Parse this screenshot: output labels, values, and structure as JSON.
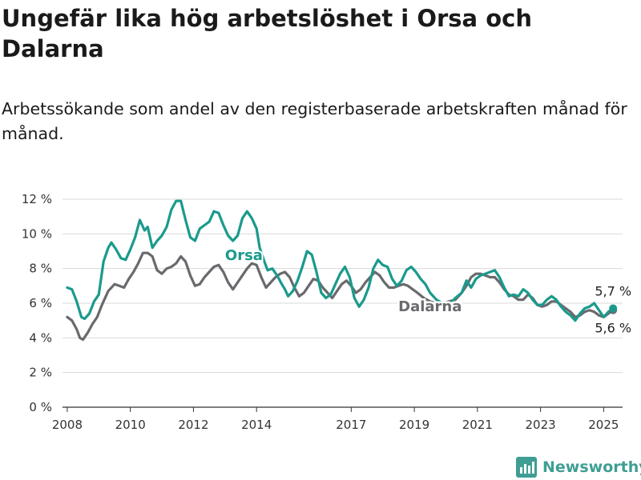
{
  "title": "Ungefär lika hög arbetslöshet i Orsa och Dalarna",
  "subtitle": "Arbetssökande som andel av den registerbaserade arbetskraften månad för månad.",
  "brand": {
    "name": "Newsworthy",
    "logo_icon": "newsworthy-bar-chart-logo"
  },
  "colors": {
    "orsa": "#1a9a8c",
    "dalarna": "#6a6a6e",
    "grid": "#d9d9d9",
    "axis": "#333333"
  },
  "chart_data": {
    "type": "line",
    "x_unit": "year",
    "xlim": [
      2007.85,
      2025.6
    ],
    "ylim": [
      0,
      12
    ],
    "y_ticks": [
      0,
      2,
      4,
      6,
      8,
      10,
      12
    ],
    "y_tick_labels": [
      "0 %",
      "2 %",
      "4 %",
      "6 %",
      "8 %",
      "10 %",
      "12 %"
    ],
    "x_ticks": [
      2008,
      2010,
      2012,
      2014,
      2017,
      2019,
      2021,
      2023,
      2025
    ],
    "x_tick_labels": [
      "2008",
      "2010",
      "2012",
      "2014",
      "2017",
      "2019",
      "2021",
      "2023",
      "2025"
    ],
    "grid": true,
    "series": [
      {
        "name": "Orsa",
        "color": "#1a9a8c",
        "end_label": "5,7 %",
        "points": [
          [
            2008.0,
            6.9
          ],
          [
            2008.15,
            6.8
          ],
          [
            2008.3,
            6.1
          ],
          [
            2008.45,
            5.2
          ],
          [
            2008.55,
            5.1
          ],
          [
            2008.7,
            5.4
          ],
          [
            2008.85,
            6.1
          ],
          [
            2009.0,
            6.5
          ],
          [
            2009.15,
            8.4
          ],
          [
            2009.3,
            9.2
          ],
          [
            2009.4,
            9.5
          ],
          [
            2009.55,
            9.1
          ],
          [
            2009.7,
            8.6
          ],
          [
            2009.85,
            8.5
          ],
          [
            2010.0,
            9.1
          ],
          [
            2010.15,
            9.8
          ],
          [
            2010.3,
            10.8
          ],
          [
            2010.45,
            10.2
          ],
          [
            2010.55,
            10.4
          ],
          [
            2010.7,
            9.2
          ],
          [
            2010.85,
            9.6
          ],
          [
            2011.0,
            9.9
          ],
          [
            2011.15,
            10.4
          ],
          [
            2011.3,
            11.4
          ],
          [
            2011.45,
            11.9
          ],
          [
            2011.6,
            11.9
          ],
          [
            2011.75,
            10.8
          ],
          [
            2011.9,
            9.8
          ],
          [
            2012.05,
            9.6
          ],
          [
            2012.2,
            10.3
          ],
          [
            2012.35,
            10.5
          ],
          [
            2012.5,
            10.7
          ],
          [
            2012.65,
            11.3
          ],
          [
            2012.8,
            11.2
          ],
          [
            2012.95,
            10.5
          ],
          [
            2013.1,
            9.9
          ],
          [
            2013.25,
            9.6
          ],
          [
            2013.4,
            9.9
          ],
          [
            2013.55,
            10.9
          ],
          [
            2013.7,
            11.3
          ],
          [
            2013.85,
            10.9
          ],
          [
            2014.0,
            10.3
          ],
          [
            2014.1,
            9.2
          ],
          [
            2014.25,
            8.4
          ],
          [
            2014.35,
            7.9
          ],
          [
            2014.5,
            8.0
          ],
          [
            2014.65,
            7.6
          ],
          [
            2014.8,
            7.1
          ],
          [
            2014.9,
            6.8
          ],
          [
            2015.0,
            6.4
          ],
          [
            2015.15,
            6.7
          ],
          [
            2015.3,
            7.3
          ],
          [
            2015.45,
            8.1
          ],
          [
            2015.6,
            9.0
          ],
          [
            2015.75,
            8.8
          ],
          [
            2015.9,
            7.8
          ],
          [
            2016.05,
            6.6
          ],
          [
            2016.2,
            6.3
          ],
          [
            2016.35,
            6.5
          ],
          [
            2016.5,
            7.1
          ],
          [
            2016.65,
            7.7
          ],
          [
            2016.8,
            8.1
          ],
          [
            2016.95,
            7.5
          ],
          [
            2017.1,
            6.3
          ],
          [
            2017.25,
            5.8
          ],
          [
            2017.4,
            6.2
          ],
          [
            2017.55,
            6.9
          ],
          [
            2017.7,
            8.0
          ],
          [
            2017.85,
            8.5
          ],
          [
            2018.0,
            8.2
          ],
          [
            2018.15,
            8.1
          ],
          [
            2018.3,
            7.4
          ],
          [
            2018.45,
            7.0
          ],
          [
            2018.6,
            7.3
          ],
          [
            2018.75,
            7.9
          ],
          [
            2018.9,
            8.1
          ],
          [
            2019.05,
            7.8
          ],
          [
            2019.2,
            7.4
          ],
          [
            2019.35,
            7.1
          ],
          [
            2019.5,
            6.6
          ],
          [
            2019.7,
            6.2
          ],
          [
            2019.9,
            6.0
          ],
          [
            2020.1,
            5.9
          ],
          [
            2020.3,
            6.3
          ],
          [
            2020.5,
            6.6
          ],
          [
            2020.65,
            7.3
          ],
          [
            2020.8,
            6.9
          ],
          [
            2020.95,
            7.4
          ],
          [
            2021.1,
            7.6
          ],
          [
            2021.25,
            7.7
          ],
          [
            2021.4,
            7.8
          ],
          [
            2021.55,
            7.9
          ],
          [
            2021.7,
            7.5
          ],
          [
            2021.85,
            6.9
          ],
          [
            2022.0,
            6.4
          ],
          [
            2022.15,
            6.5
          ],
          [
            2022.3,
            6.4
          ],
          [
            2022.45,
            6.8
          ],
          [
            2022.6,
            6.6
          ],
          [
            2022.75,
            6.2
          ],
          [
            2022.9,
            5.9
          ],
          [
            2023.05,
            5.9
          ],
          [
            2023.2,
            6.2
          ],
          [
            2023.35,
            6.4
          ],
          [
            2023.5,
            6.2
          ],
          [
            2023.65,
            5.8
          ],
          [
            2023.8,
            5.5
          ],
          [
            2023.95,
            5.3
          ],
          [
            2024.1,
            5.0
          ],
          [
            2024.25,
            5.4
          ],
          [
            2024.4,
            5.7
          ],
          [
            2024.55,
            5.8
          ],
          [
            2024.7,
            6.0
          ],
          [
            2024.85,
            5.6
          ],
          [
            2025.0,
            5.2
          ],
          [
            2025.15,
            5.5
          ],
          [
            2025.3,
            5.7
          ]
        ]
      },
      {
        "name": "Dalarna",
        "color": "#6a6a6e",
        "end_label": "5,6 %",
        "points": [
          [
            2008.0,
            5.2
          ],
          [
            2008.15,
            5.0
          ],
          [
            2008.3,
            4.5
          ],
          [
            2008.4,
            4.0
          ],
          [
            2008.5,
            3.9
          ],
          [
            2008.65,
            4.3
          ],
          [
            2008.8,
            4.8
          ],
          [
            2008.95,
            5.2
          ],
          [
            2009.1,
            5.9
          ],
          [
            2009.3,
            6.7
          ],
          [
            2009.5,
            7.1
          ],
          [
            2009.65,
            7.0
          ],
          [
            2009.8,
            6.9
          ],
          [
            2009.95,
            7.4
          ],
          [
            2010.1,
            7.8
          ],
          [
            2010.25,
            8.3
          ],
          [
            2010.4,
            8.9
          ],
          [
            2010.55,
            8.9
          ],
          [
            2010.7,
            8.7
          ],
          [
            2010.85,
            7.9
          ],
          [
            2011.0,
            7.7
          ],
          [
            2011.15,
            8.0
          ],
          [
            2011.3,
            8.1
          ],
          [
            2011.45,
            8.3
          ],
          [
            2011.6,
            8.7
          ],
          [
            2011.75,
            8.4
          ],
          [
            2011.9,
            7.6
          ],
          [
            2012.05,
            7.0
          ],
          [
            2012.2,
            7.1
          ],
          [
            2012.35,
            7.5
          ],
          [
            2012.5,
            7.8
          ],
          [
            2012.65,
            8.1
          ],
          [
            2012.8,
            8.2
          ],
          [
            2012.95,
            7.8
          ],
          [
            2013.1,
            7.2
          ],
          [
            2013.25,
            6.8
          ],
          [
            2013.4,
            7.2
          ],
          [
            2013.55,
            7.6
          ],
          [
            2013.7,
            8.0
          ],
          [
            2013.85,
            8.3
          ],
          [
            2014.0,
            8.2
          ],
          [
            2014.15,
            7.5
          ],
          [
            2014.3,
            6.9
          ],
          [
            2014.45,
            7.2
          ],
          [
            2014.6,
            7.5
          ],
          [
            2014.75,
            7.7
          ],
          [
            2014.9,
            7.8
          ],
          [
            2015.05,
            7.5
          ],
          [
            2015.2,
            6.9
          ],
          [
            2015.35,
            6.4
          ],
          [
            2015.5,
            6.6
          ],
          [
            2015.65,
            7.0
          ],
          [
            2015.8,
            7.4
          ],
          [
            2015.95,
            7.3
          ],
          [
            2016.1,
            6.9
          ],
          [
            2016.25,
            6.6
          ],
          [
            2016.4,
            6.3
          ],
          [
            2016.55,
            6.7
          ],
          [
            2016.7,
            7.1
          ],
          [
            2016.85,
            7.3
          ],
          [
            2017.0,
            7.0
          ],
          [
            2017.15,
            6.6
          ],
          [
            2017.3,
            6.8
          ],
          [
            2017.45,
            7.2
          ],
          [
            2017.6,
            7.5
          ],
          [
            2017.75,
            7.8
          ],
          [
            2017.9,
            7.6
          ],
          [
            2018.05,
            7.2
          ],
          [
            2018.2,
            6.9
          ],
          [
            2018.35,
            6.9
          ],
          [
            2018.5,
            7.0
          ],
          [
            2018.65,
            7.1
          ],
          [
            2018.8,
            7.0
          ],
          [
            2018.95,
            6.8
          ],
          [
            2019.1,
            6.6
          ],
          [
            2019.3,
            6.3
          ],
          [
            2019.5,
            6.1
          ],
          [
            2019.7,
            6.0
          ],
          [
            2019.9,
            6.0
          ],
          [
            2020.1,
            6.1
          ],
          [
            2020.3,
            6.2
          ],
          [
            2020.5,
            6.6
          ],
          [
            2020.65,
            7.0
          ],
          [
            2020.8,
            7.5
          ],
          [
            2020.95,
            7.7
          ],
          [
            2021.1,
            7.7
          ],
          [
            2021.25,
            7.6
          ],
          [
            2021.4,
            7.5
          ],
          [
            2021.55,
            7.5
          ],
          [
            2021.7,
            7.2
          ],
          [
            2021.85,
            6.8
          ],
          [
            2022.0,
            6.5
          ],
          [
            2022.15,
            6.4
          ],
          [
            2022.3,
            6.2
          ],
          [
            2022.45,
            6.2
          ],
          [
            2022.6,
            6.5
          ],
          [
            2022.75,
            6.3
          ],
          [
            2022.9,
            5.9
          ],
          [
            2023.05,
            5.8
          ],
          [
            2023.2,
            5.9
          ],
          [
            2023.35,
            6.1
          ],
          [
            2023.5,
            6.1
          ],
          [
            2023.65,
            5.9
          ],
          [
            2023.8,
            5.7
          ],
          [
            2023.95,
            5.5
          ],
          [
            2024.1,
            5.2
          ],
          [
            2024.25,
            5.3
          ],
          [
            2024.4,
            5.5
          ],
          [
            2024.55,
            5.6
          ],
          [
            2024.7,
            5.5
          ],
          [
            2024.85,
            5.3
          ],
          [
            2025.0,
            5.2
          ],
          [
            2025.15,
            5.4
          ],
          [
            2025.3,
            5.6
          ]
        ]
      }
    ]
  }
}
